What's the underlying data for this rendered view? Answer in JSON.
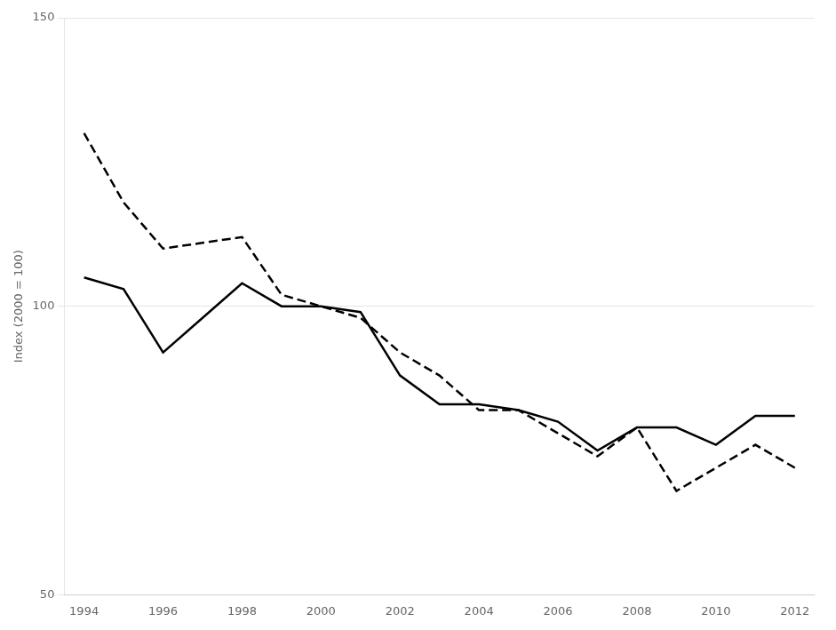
{
  "chart_data": {
    "type": "line",
    "ylabel": "Index (2000 = 100)",
    "x": [
      1994,
      1995,
      1996,
      1997,
      1998,
      1999,
      2000,
      2001,
      2002,
      2003,
      2004,
      2005,
      2006,
      2007,
      2008,
      2009,
      2010,
      2011,
      2012
    ],
    "series": [
      {
        "color": "#000000",
        "line_style": "solid",
        "values": [
          105,
          103,
          92,
          98,
          104,
          100,
          100,
          99,
          88,
          83,
          83,
          82,
          80,
          75,
          79,
          79,
          76,
          81,
          81
        ]
      },
      {
        "color": "#000000",
        "line_style": "dashed",
        "values": [
          130,
          118,
          110,
          111,
          112,
          102,
          100,
          98,
          92,
          88,
          82,
          82,
          78,
          74,
          79,
          68,
          72,
          76,
          72
        ]
      }
    ],
    "xlim": [
      1993.5,
      2012.5
    ],
    "xticks": [
      1994,
      1996,
      1998,
      2000,
      2002,
      2004,
      2006,
      2008,
      2010,
      2012
    ],
    "ylim": [
      50,
      150
    ],
    "yticks": [
      50,
      100,
      150
    ],
    "grid": "y"
  }
}
